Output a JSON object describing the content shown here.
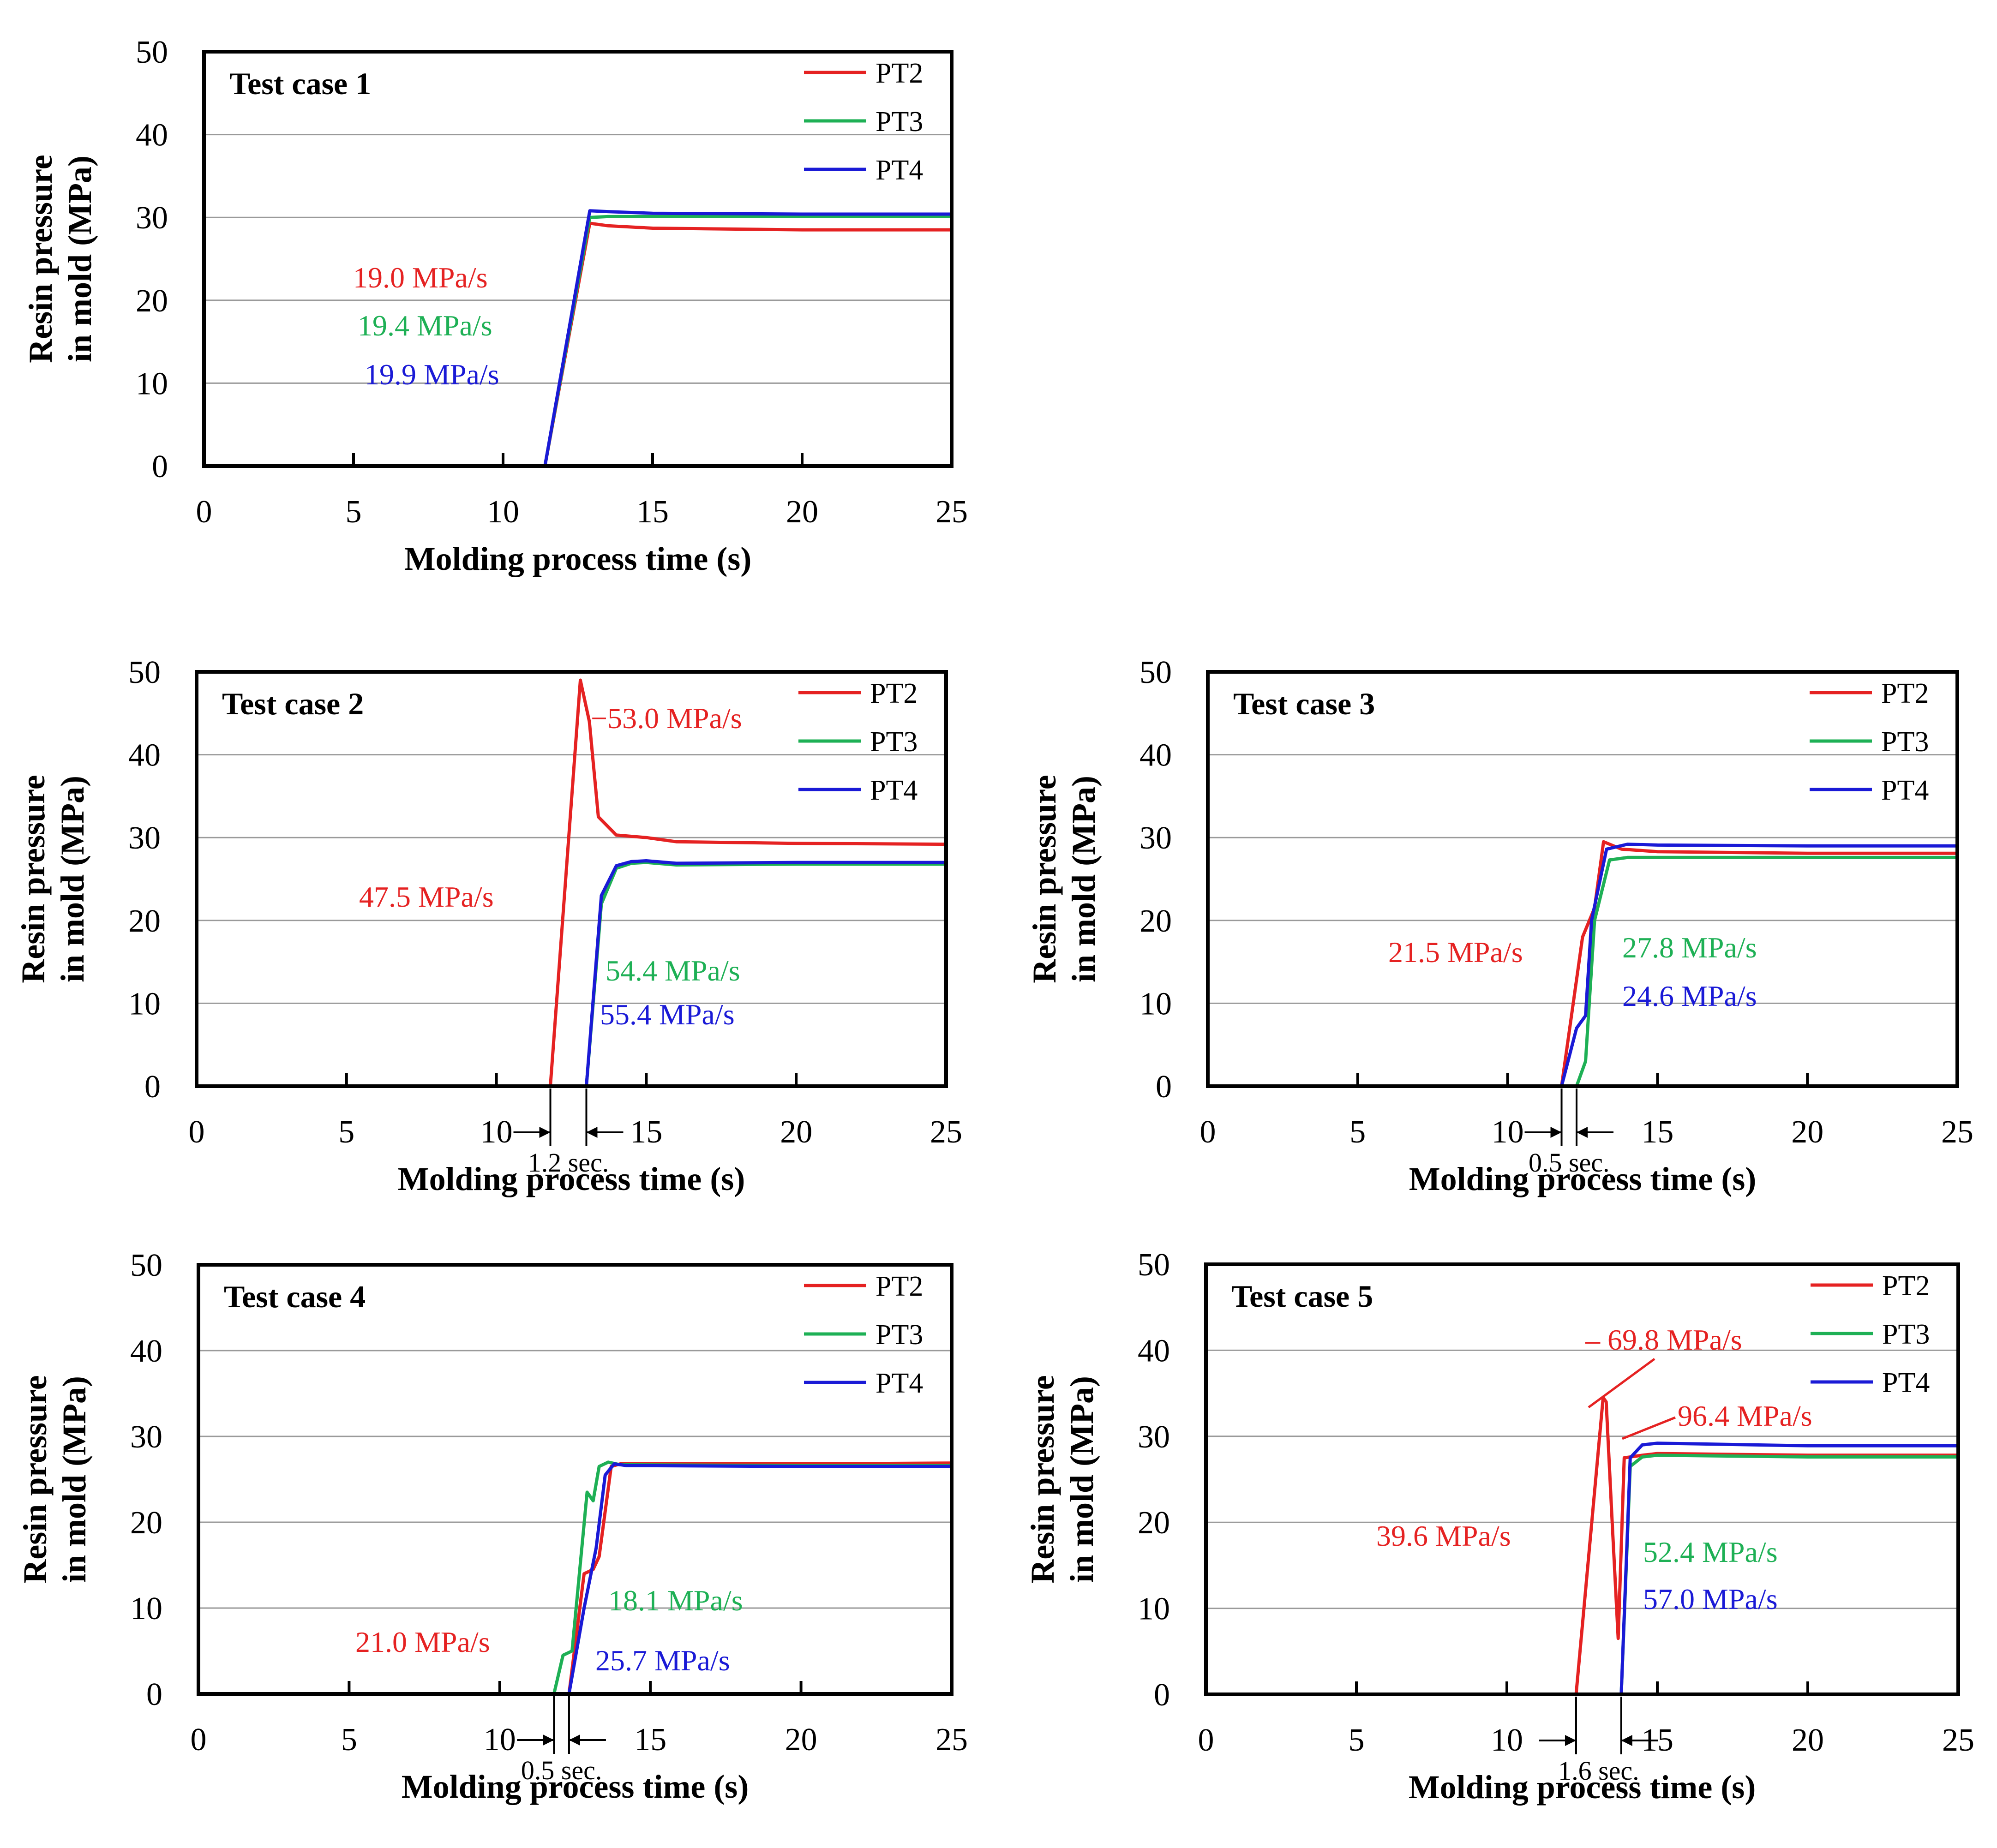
{
  "figure": {
    "x_axis_label": "Molding process time (s)",
    "y_axis_label_line1": "Resin pressure",
    "y_axis_label_line2": "in mold (MPa)",
    "x_ticks": [
      "0",
      "5",
      "10",
      "15",
      "20",
      "25"
    ],
    "y_ticks": [
      "0",
      "10",
      "20",
      "30",
      "40",
      "50"
    ],
    "legend": [
      "PT2",
      "PT3",
      "PT4"
    ],
    "colors": {
      "PT2": "#e52222",
      "PT3": "#1eb055",
      "PT4": "#1a1ad6"
    }
  },
  "chart_data": [
    {
      "type": "line",
      "title": "Test case 1",
      "xlabel": "Molding process time (s)",
      "ylabel": "Resin pressure in mold (MPa)",
      "xlim": [
        0,
        25
      ],
      "ylim": [
        0,
        50
      ],
      "grid": "horizontal",
      "legend": "top-right",
      "series": [
        {
          "name": "PT2",
          "x": [
            0,
            11.4,
            12.9,
            13.5,
            15,
            20,
            25
          ],
          "y": [
            0,
            0,
            29.3,
            29.0,
            28.7,
            28.5,
            28.5
          ]
        },
        {
          "name": "PT3",
          "x": [
            0,
            11.4,
            12.9,
            13.5,
            15,
            20,
            25
          ],
          "y": [
            0,
            0,
            30.0,
            30.1,
            30.1,
            30.1,
            30.1
          ]
        },
        {
          "name": "PT4",
          "x": [
            0,
            11.4,
            12.9,
            13.5,
            15,
            20,
            25
          ],
          "y": [
            0,
            0,
            30.8,
            30.7,
            30.5,
            30.4,
            30.4
          ]
        }
      ],
      "annotations": [
        {
          "text": "19.0 MPa/s",
          "series": "PT2"
        },
        {
          "text": "19.4 MPa/s",
          "series": "PT3"
        },
        {
          "text": "19.9 MPa/s",
          "series": "PT4"
        }
      ],
      "interval": null
    },
    {
      "type": "line",
      "title": "Test case 2",
      "xlabel": "Molding process time (s)",
      "ylabel": "Resin pressure in mold (MPa)",
      "xlim": [
        0,
        25
      ],
      "ylim": [
        0,
        50
      ],
      "grid": "horizontal",
      "legend": "top-right",
      "series": [
        {
          "name": "PT2",
          "x": [
            0,
            11.8,
            12.8,
            13.1,
            13.4,
            14,
            15,
            16,
            20,
            25
          ],
          "y": [
            0,
            0,
            49.0,
            44,
            32.5,
            30.3,
            30.0,
            29.5,
            29.3,
            29.2
          ]
        },
        {
          "name": "PT3",
          "x": [
            0,
            13.0,
            13.5,
            14,
            14.5,
            15,
            16,
            20,
            25
          ],
          "y": [
            0,
            0,
            22,
            26.3,
            26.9,
            27.0,
            26.7,
            26.8,
            26.8
          ]
        },
        {
          "name": "PT4",
          "x": [
            0,
            13.0,
            13.5,
            14,
            14.5,
            15,
            16,
            20,
            25
          ],
          "y": [
            0,
            0,
            23,
            26.6,
            27.1,
            27.2,
            26.9,
            27.0,
            27.0
          ]
        }
      ],
      "annotations": [
        {
          "text": "−53.0 MPa/s",
          "series": "PT2"
        },
        {
          "text": "47.5 MPa/s",
          "series": "PT2"
        },
        {
          "text": "54.4 MPa/s",
          "series": "PT3"
        },
        {
          "text": "55.4 MPa/s",
          "series": "PT4"
        }
      ],
      "interval": {
        "text": "1.2 sec.",
        "from": 11.8,
        "to": 13.0
      }
    },
    {
      "type": "line",
      "title": "Test case 3",
      "xlabel": "Molding process time (s)",
      "ylabel": "Resin pressure in mold (MPa)",
      "xlim": [
        0,
        25
      ],
      "ylim": [
        0,
        50
      ],
      "grid": "horizontal",
      "legend": "top-right",
      "series": [
        {
          "name": "PT2",
          "x": [
            0,
            11.8,
            12.5,
            12.9,
            13.2,
            13.8,
            15,
            20,
            25
          ],
          "y": [
            0,
            0,
            18,
            21.5,
            29.5,
            28.6,
            28.3,
            28.1,
            28.1
          ]
        },
        {
          "name": "PT3",
          "x": [
            0,
            12.3,
            12.6,
            12.9,
            13.4,
            14,
            15,
            20,
            25
          ],
          "y": [
            0,
            0,
            3,
            20,
            27.3,
            27.6,
            27.6,
            27.6,
            27.6
          ]
        },
        {
          "name": "PT4",
          "x": [
            0,
            11.8,
            12.3,
            12.6,
            12.8,
            13.3,
            14,
            15,
            20,
            25
          ],
          "y": [
            0,
            0,
            7,
            8.5,
            20,
            28.6,
            29.2,
            29.1,
            29.0,
            29.0
          ]
        }
      ],
      "annotations": [
        {
          "text": "21.5 MPa/s",
          "series": "PT2"
        },
        {
          "text": "27.8 MPa/s",
          "series": "PT3"
        },
        {
          "text": "24.6 MPa/s",
          "series": "PT4"
        }
      ],
      "interval": {
        "text": "0.5 sec.",
        "from": 11.8,
        "to": 12.3
      }
    },
    {
      "type": "line",
      "title": "Test case 4",
      "xlabel": "Molding process time (s)",
      "ylabel": "Resin pressure in mold (MPa)",
      "xlim": [
        0,
        25
      ],
      "ylim": [
        0,
        50
      ],
      "grid": "horizontal",
      "legend": "top-right",
      "series": [
        {
          "name": "PT2",
          "x": [
            0,
            12.3,
            12.8,
            13.1,
            13.3,
            13.7,
            14,
            20,
            25
          ],
          "y": [
            0,
            0,
            14,
            14.5,
            16,
            26.5,
            26.8,
            26.8,
            26.9
          ]
        },
        {
          "name": "PT3",
          "x": [
            0,
            11.8,
            12.1,
            12.4,
            12.9,
            13.1,
            13.3,
            13.6,
            14,
            20,
            25
          ],
          "y": [
            0,
            0,
            4.5,
            5,
            23.5,
            22.5,
            26.5,
            27.0,
            26.7,
            26.6,
            26.6
          ]
        },
        {
          "name": "PT4",
          "x": [
            0,
            12.3,
            12.8,
            13.2,
            13.5,
            13.8,
            14.2,
            20,
            25
          ],
          "y": [
            0,
            0,
            10,
            17,
            25.5,
            26.8,
            26.6,
            26.5,
            26.5
          ]
        }
      ],
      "annotations": [
        {
          "text": "21.0 MPa/s",
          "series": "PT2"
        },
        {
          "text": "18.1 MPa/s",
          "series": "PT3"
        },
        {
          "text": "25.7 MPa/s",
          "series": "PT4"
        }
      ],
      "interval": {
        "text": "0.5 sec.",
        "from": 11.8,
        "to": 12.3
      }
    },
    {
      "type": "line",
      "title": "Test case 5",
      "xlabel": "Molding process time (s)",
      "ylabel": "Resin pressure in mold (MPa)",
      "xlim": [
        0,
        25
      ],
      "ylim": [
        0,
        50
      ],
      "grid": "horizontal",
      "legend": "top-right",
      "series": [
        {
          "name": "PT2",
          "x": [
            0,
            12.3,
            13.2,
            13.3,
            13.5,
            13.7,
            13.9,
            14.5,
            15,
            20,
            25
          ],
          "y": [
            0,
            0,
            34.5,
            34.0,
            20,
            6.5,
            27.5,
            27.8,
            28.0,
            27.8,
            27.8
          ]
        },
        {
          "name": "PT3",
          "x": [
            0,
            13.8,
            14.1,
            14.5,
            15,
            20,
            25
          ],
          "y": [
            0,
            0,
            26.5,
            27.6,
            27.8,
            27.6,
            27.6
          ]
        },
        {
          "name": "PT4",
          "x": [
            0,
            13.8,
            14.1,
            14.5,
            15,
            20,
            25
          ],
          "y": [
            0,
            0,
            27.5,
            29.0,
            29.2,
            28.9,
            28.9
          ]
        }
      ],
      "annotations": [
        {
          "text": "– 69.8 MPa/s",
          "series": "PT2"
        },
        {
          "text": "96.4 MPa/s",
          "series": "PT2"
        },
        {
          "text": "39.6 MPa/s",
          "series": "PT2"
        },
        {
          "text": "52.4 MPa/s",
          "series": "PT3"
        },
        {
          "text": "57.0 MPa/s",
          "series": "PT4"
        }
      ],
      "interval": {
        "text": "1.6 sec.",
        "from": 12.3,
        "to": 13.8
      }
    }
  ]
}
